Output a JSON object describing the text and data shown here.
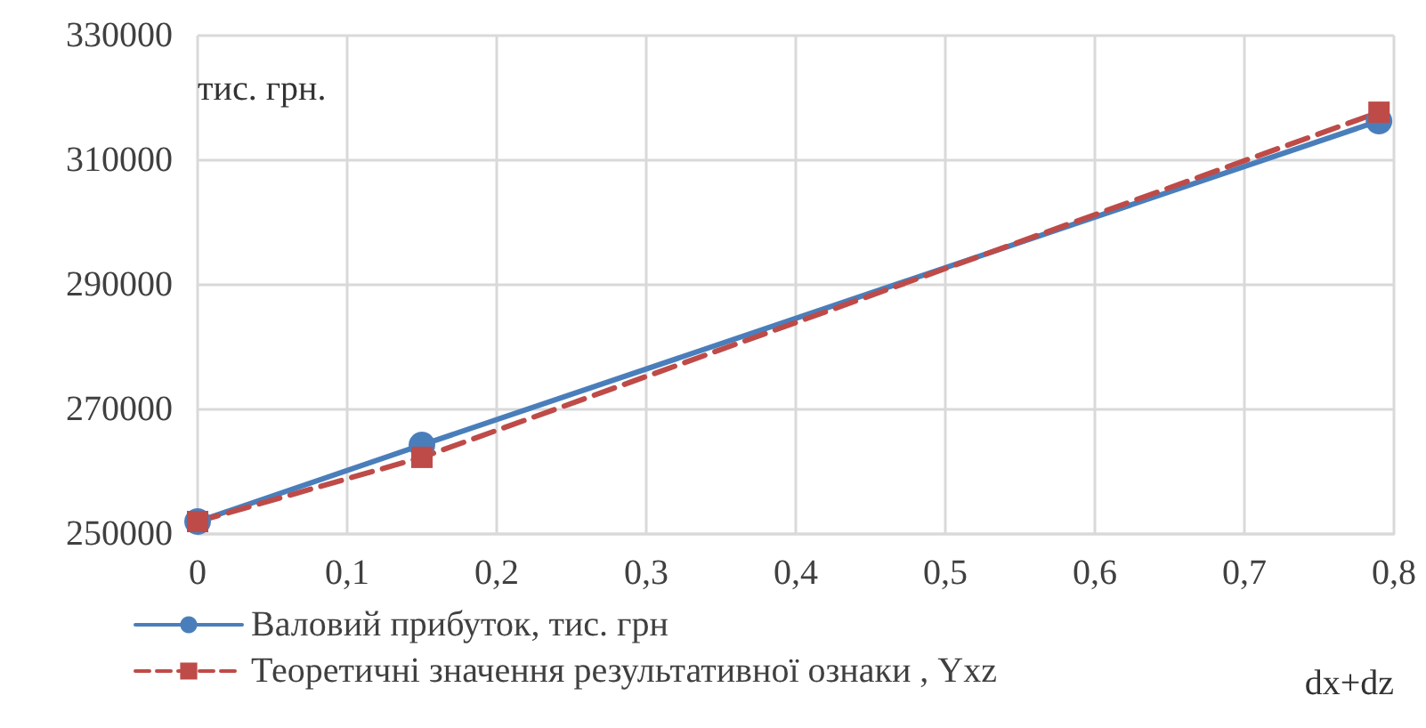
{
  "chart_data": {
    "type": "line",
    "xlabel": "dx+dz",
    "ylabel": "тис. грн.",
    "xlim": [
      0,
      0.8
    ],
    "xticks": [
      {
        "value": 0,
        "label": "0"
      },
      {
        "value": 0.1,
        "label": "0,1"
      },
      {
        "value": 0.2,
        "label": "0,2"
      },
      {
        "value": 0.3,
        "label": "0,3"
      },
      {
        "value": 0.4,
        "label": "0,4"
      },
      {
        "value": 0.5,
        "label": "0,5"
      },
      {
        "value": 0.6,
        "label": "0,6"
      },
      {
        "value": 0.7,
        "label": "0,7"
      },
      {
        "value": 0.8,
        "label": "0,8"
      }
    ],
    "ylim": [
      250000,
      330000
    ],
    "yticks": [
      250000,
      270000,
      290000,
      310000,
      330000
    ],
    "x": [
      0,
      0.15,
      0.79
    ],
    "series": [
      {
        "name": "Валовий прибуток, тис. грн",
        "color": "#4a7ebb",
        "values": [
          252000,
          264300,
          316300
        ],
        "marker": "circle",
        "line_style": "solid"
      },
      {
        "name": "Теоретичні значення результативної ознаки , Yxz",
        "color": "#be4b48",
        "values": [
          252000,
          262300,
          317700
        ],
        "marker": "square",
        "line_style": "dashed"
      }
    ],
    "grid": true,
    "legend": "bottom left"
  }
}
